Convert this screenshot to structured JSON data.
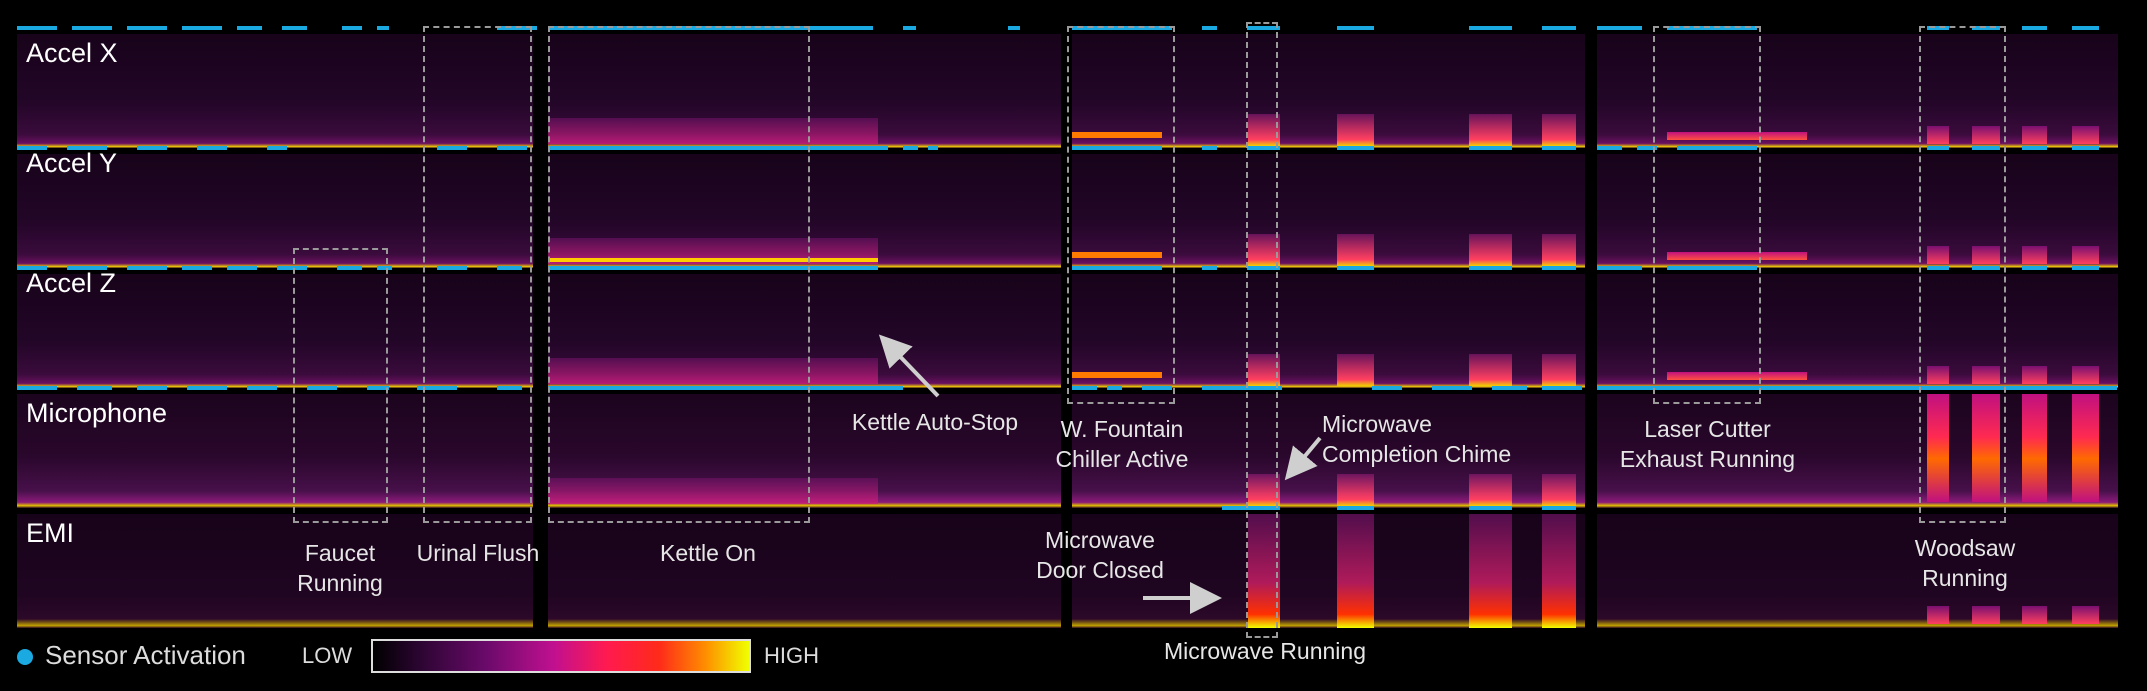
{
  "channels": [
    {
      "id": "accel-x",
      "label": "Accel X"
    },
    {
      "id": "accel-y",
      "label": "Accel Y"
    },
    {
      "id": "accel-z",
      "label": "Accel Z"
    },
    {
      "id": "microphone",
      "label": "Microphone"
    },
    {
      "id": "emi",
      "label": "EMI"
    }
  ],
  "annotations": {
    "faucet": "Faucet\nRunning",
    "urinal": "Urinal Flush",
    "kettle_on": "Kettle On",
    "kettle_stop": "Kettle Auto-Stop",
    "fountain": "W. Fountain\nChiller Active",
    "mw_door": "Microwave\nDoor Closed",
    "mw_chime": "Microwave\nCompletion Chime",
    "mw_running": "Microwave Running",
    "laser": "Laser Cutter\nExhaust Running",
    "woodsaw": "Woodsaw\nRunning"
  },
  "legend": {
    "sensor_activation": "Sensor Activation",
    "low": "LOW",
    "high": "HIGH",
    "activation_color": "#1aa9e0"
  }
}
